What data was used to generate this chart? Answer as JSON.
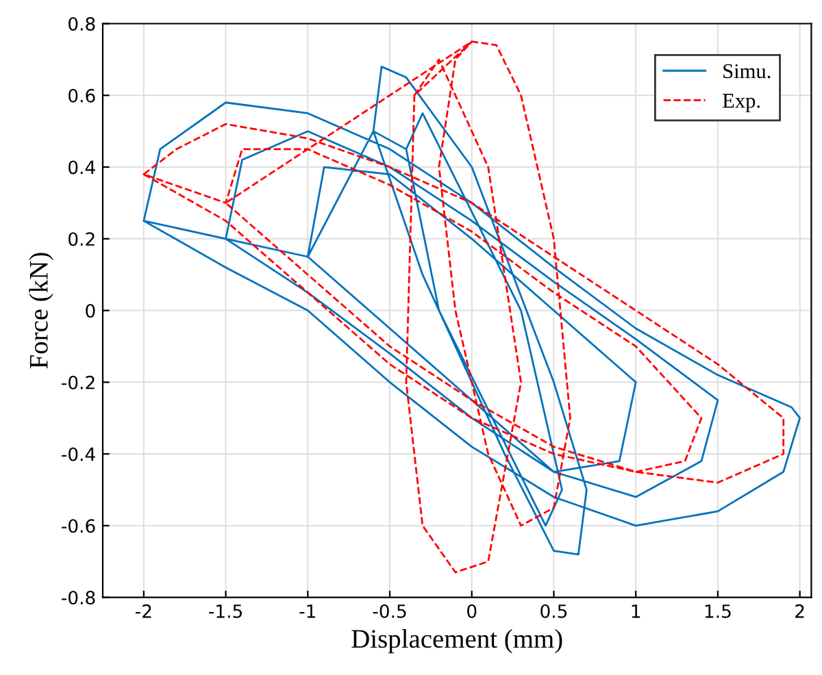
{
  "chart_data": {
    "type": "line",
    "xlabel": "Displacement (mm)",
    "ylabel": "Force (kN)",
    "xlim": [
      -2.25,
      2.07
    ],
    "ylim": [
      -0.8,
      0.8
    ],
    "xticks": [
      -2,
      -1.5,
      -1,
      -0.5,
      0,
      0.5,
      1,
      1.5,
      2
    ],
    "yticks": [
      -0.8,
      -0.6,
      -0.4,
      -0.2,
      0,
      0.2,
      0.4,
      0.6,
      0.8
    ],
    "grid": true,
    "legend": "top right",
    "series": [
      {
        "name": "Simu.",
        "color": "#0072bd",
        "line_style": "solid",
        "x": [
          -2,
          -1.9,
          -1.5,
          -1,
          -0.5,
          0,
          0.5,
          1,
          1.5,
          1.95,
          2,
          1.9,
          1.5,
          1,
          0.5,
          0,
          -0.5,
          -1,
          -1.5,
          -2,
          -1.5,
          -1.4,
          -1,
          -0.5,
          0,
          0.5,
          1,
          1.5,
          1.4,
          1,
          0.5,
          0,
          -0.5,
          -1,
          -1.5,
          -1,
          -0.9,
          -0.5,
          0,
          0.5,
          1,
          0.9,
          0.5,
          0,
          -0.5,
          -1,
          -0.6,
          -0.55,
          -0.4,
          0,
          0.5,
          0.7,
          0.65,
          0.5,
          0.2,
          -0.3,
          -0.6,
          -0.4,
          -0.3,
          0.3,
          0.55,
          0.45,
          -0.2,
          -0.4
        ],
        "values": [
          0.25,
          0.45,
          0.58,
          0.55,
          0.45,
          0.3,
          0.12,
          -0.05,
          -0.18,
          -0.27,
          -0.3,
          -0.45,
          -0.56,
          -0.6,
          -0.52,
          -0.38,
          -0.2,
          0,
          0.12,
          0.25,
          0.2,
          0.42,
          0.5,
          0.4,
          0.25,
          0.08,
          -0.08,
          -0.25,
          -0.42,
          -0.52,
          -0.45,
          -0.3,
          -0.12,
          0.05,
          0.2,
          0.15,
          0.4,
          0.38,
          0.2,
          0,
          -0.2,
          -0.42,
          -0.45,
          -0.25,
          -0.05,
          0.15,
          0.5,
          0.68,
          0.65,
          0.4,
          -0.2,
          -0.5,
          -0.68,
          -0.67,
          -0.4,
          0.1,
          0.5,
          0.45,
          0.55,
          0,
          -0.5,
          -0.6,
          0,
          0.45
        ]
      },
      {
        "name": "Exp.",
        "color": "#ff0000",
        "line_style": "dashed",
        "x": [
          -2,
          -1.8,
          -1.5,
          -1,
          -0.5,
          0,
          0.5,
          1,
          1.5,
          1.9,
          1.9,
          1.5,
          1,
          0.5,
          0,
          -0.5,
          -1,
          -1.5,
          -2,
          -1.5,
          -1.4,
          -1,
          -0.5,
          0,
          0.5,
          1,
          1.4,
          1.3,
          1,
          0.5,
          0,
          -0.5,
          -1,
          -1.5,
          0,
          0.15,
          0.3,
          0.5,
          0.6,
          0.5,
          0.3,
          0.1,
          -0.1,
          -0.2,
          -0.1,
          0,
          -0.35,
          -0.2,
          0.1,
          0.3,
          0.1,
          -0.1,
          -0.3,
          -0.4,
          -0.35
        ],
        "values": [
          0.38,
          0.45,
          0.52,
          0.48,
          0.4,
          0.3,
          0.15,
          0,
          -0.15,
          -0.3,
          -0.4,
          -0.48,
          -0.45,
          -0.4,
          -0.3,
          -0.15,
          0.05,
          0.25,
          0.38,
          0.3,
          0.45,
          0.45,
          0.35,
          0.22,
          0.05,
          -0.1,
          -0.3,
          -0.42,
          -0.45,
          -0.38,
          -0.25,
          -0.1,
          0.1,
          0.3,
          0.75,
          0.74,
          0.6,
          0.2,
          -0.3,
          -0.55,
          -0.6,
          -0.4,
          0,
          0.4,
          0.7,
          0.75,
          0.6,
          0.7,
          0.4,
          -0.2,
          -0.7,
          -0.73,
          -0.6,
          -0.2,
          0.6
        ]
      }
    ]
  }
}
